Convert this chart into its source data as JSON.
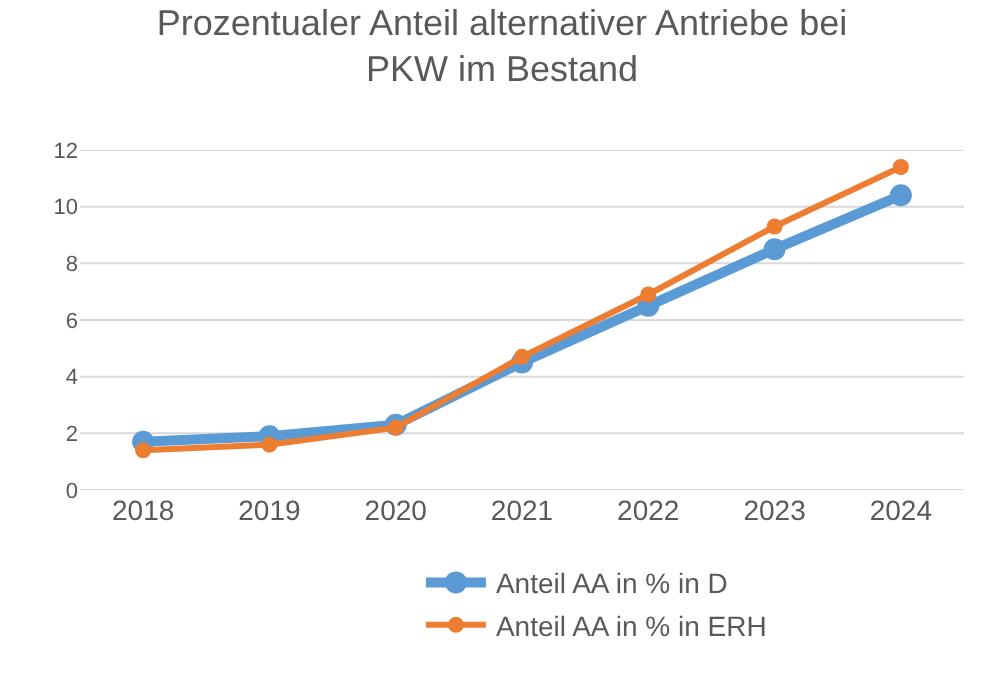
{
  "chart_data": {
    "type": "line",
    "title": "Prozentualer Anteil alternativer Antriebe bei PKW im Bestand",
    "categories": [
      "2018",
      "2019",
      "2020",
      "2021",
      "2022",
      "2023",
      "2024"
    ],
    "series": [
      {
        "name": "Anteil AA in % in D",
        "color": "#5b9bd5",
        "values": [
          1.7,
          1.9,
          2.3,
          4.5,
          6.5,
          8.5,
          10.4
        ]
      },
      {
        "name": "Anteil AA in % in ERH",
        "color": "#ed7d31",
        "values": [
          1.4,
          1.6,
          2.2,
          4.7,
          6.9,
          9.3,
          11.4
        ]
      }
    ],
    "ylim": [
      0,
      12
    ],
    "yticks": [
      0,
      2,
      4,
      6,
      8,
      10,
      12
    ],
    "grid": "y",
    "legend": "bottom",
    "marker": "circle",
    "line_style": "solid"
  }
}
